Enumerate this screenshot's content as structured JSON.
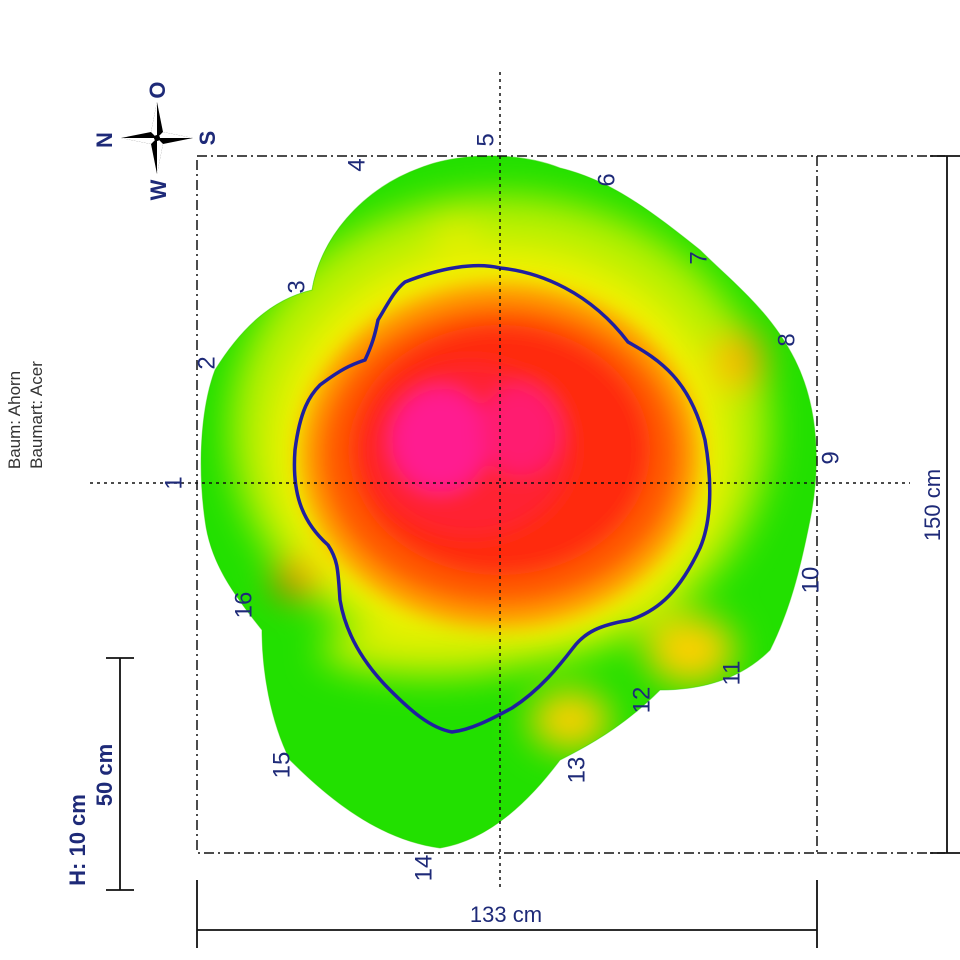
{
  "colors": {
    "labels": "#1e2a78",
    "outline": "#1f1fa0",
    "guides": "#111111",
    "scale_low": "#00e000",
    "scale_mid": "#ffff00",
    "scale_high": "#ff2000",
    "scale_peak": "#ff1aa0"
  },
  "compass": {
    "north": "N",
    "east": "O",
    "south": "S",
    "west": "W"
  },
  "tree_info": {
    "line1": "Baum: Ahorn",
    "line2": "Baumart: Acer"
  },
  "measurement_points": [
    "1",
    "2",
    "3",
    "4",
    "5",
    "6",
    "7",
    "8",
    "9",
    "10",
    "11",
    "12",
    "13",
    "14",
    "15",
    "16"
  ],
  "dimensions": {
    "width": "133 cm",
    "height": "150 cm"
  },
  "scale_bar": {
    "length": "50 cm",
    "height_label": "H: 10 cm"
  }
}
